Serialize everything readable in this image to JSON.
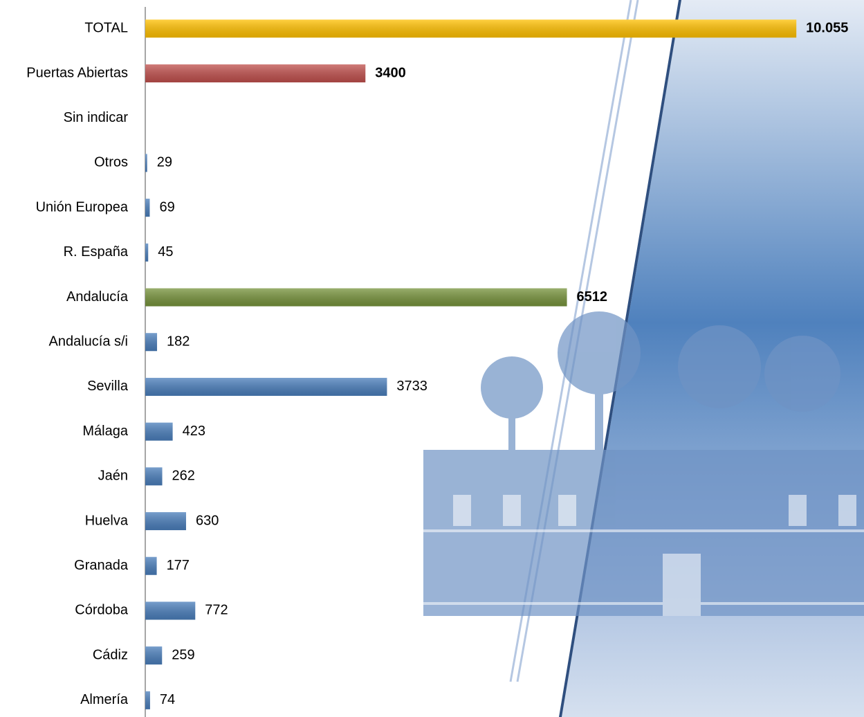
{
  "chart_data": {
    "type": "bar",
    "orientation": "horizontal",
    "categories": [
      "TOTAL",
      "Puertas Abiertas",
      "Sin indicar",
      "Otros",
      "Unión Europea",
      "R. España",
      "Andalucía",
      "Andalucía s/i",
      "Sevilla",
      "Málaga",
      "Jaén",
      "Huelva",
      "Granada",
      "Córdoba",
      "Cádiz",
      "Almería"
    ],
    "values": [
      10055,
      3400,
      null,
      29,
      69,
      45,
      6512,
      182,
      3733,
      423,
      262,
      630,
      177,
      772,
      259,
      74
    ],
    "value_labels": [
      "10.055",
      "3400",
      null,
      "29",
      "69",
      "45",
      "6512",
      "182",
      "3733",
      "423",
      "262",
      "630",
      "177",
      "772",
      "259",
      "74"
    ],
    "colors": [
      "#ffc000",
      "#c0504d",
      "#4a7ebb",
      "#4a7ebb",
      "#4a7ebb",
      "#4a7ebb",
      "#77933c",
      "#4a7ebb",
      "#4a7ebb",
      "#4a7ebb",
      "#4a7ebb",
      "#4a7ebb",
      "#4a7ebb",
      "#4a7ebb",
      "#4a7ebb",
      "#4a7ebb"
    ],
    "label_bold": [
      true,
      true,
      false,
      false,
      false,
      false,
      true,
      false,
      false,
      false,
      false,
      false,
      false,
      false,
      false,
      false
    ],
    "xlim": [
      0,
      11100
    ]
  }
}
